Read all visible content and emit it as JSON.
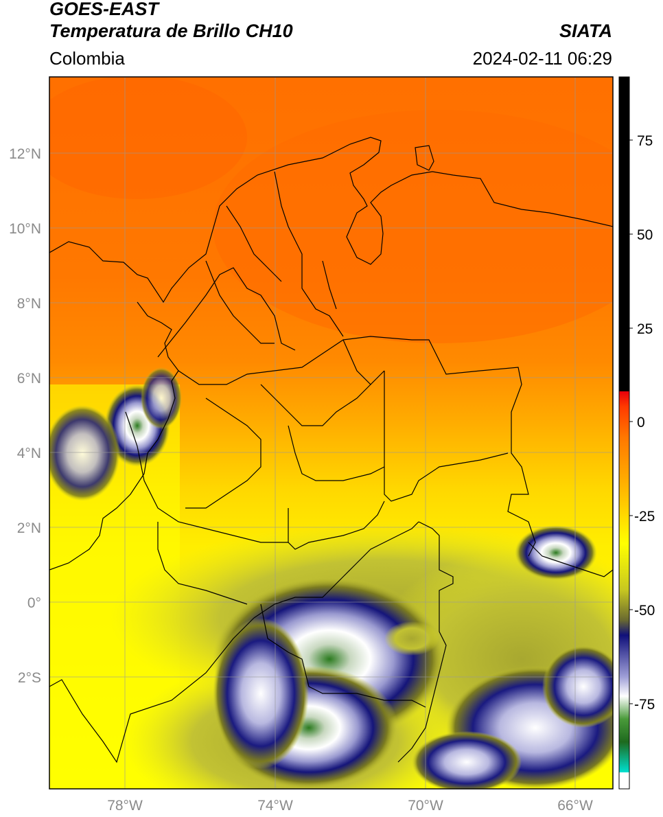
{
  "header": {
    "satellite": "GOES-EAST",
    "product": "Temperatura de Brillo CH10",
    "region": "Colombia",
    "source": "SIATA",
    "timestamp": "2024-02-11 06:29"
  },
  "map": {
    "lat_labels": [
      "12°N",
      "10°N",
      "8°N",
      "6°N",
      "4°N",
      "2°N",
      "0°",
      "2°S"
    ],
    "lon_labels": [
      "78°W",
      "74°W",
      "70°W",
      "66°W"
    ],
    "lat_values": [
      12,
      10,
      8,
      6,
      4,
      2,
      0,
      -2
    ],
    "lon_values": [
      -78,
      -74,
      -70,
      -66
    ],
    "extent": {
      "lon_min": -80,
      "lon_max": -65,
      "lat_min": -4.9,
      "lat_max": 14.1
    }
  },
  "colorbar": {
    "ticks": [
      "75",
      "50",
      "25",
      "0",
      "-25",
      "-50",
      "-75"
    ],
    "tick_values": [
      75,
      50,
      25,
      0,
      -25,
      -50,
      -75
    ],
    "range": [
      -95,
      90
    ],
    "colors": {
      "black": "#000000",
      "red": "#e8000b",
      "orange": "#ff7700",
      "yellow": "#ffff00",
      "olive": "#8a8a1a",
      "navy": "#11117a",
      "white": "#ffffff",
      "green": "#2c7b1f",
      "cyan": "#00e0d0"
    }
  }
}
